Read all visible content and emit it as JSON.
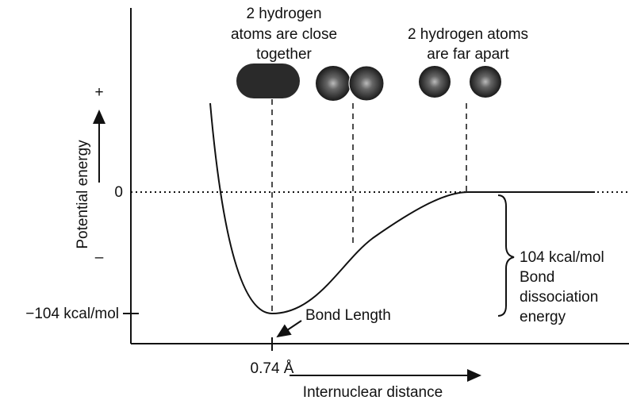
{
  "labels": {
    "close": [
      "2 hydrogen",
      "atoms are close",
      "together"
    ],
    "far": [
      "2 hydrogen atoms",
      "are far apart"
    ]
  },
  "y_axis": {
    "title": "Potential energy",
    "plus": "+",
    "minus": "–",
    "ticks": [
      "0",
      "−104 kcal/mol"
    ]
  },
  "x_axis": {
    "title": "Internuclear distance",
    "tick": "0.74 Å"
  },
  "annotations": {
    "bond_length": "Bond Length",
    "dissociation": [
      "104 kcal/mol",
      "Bond",
      "dissociation",
      "energy"
    ]
  }
}
